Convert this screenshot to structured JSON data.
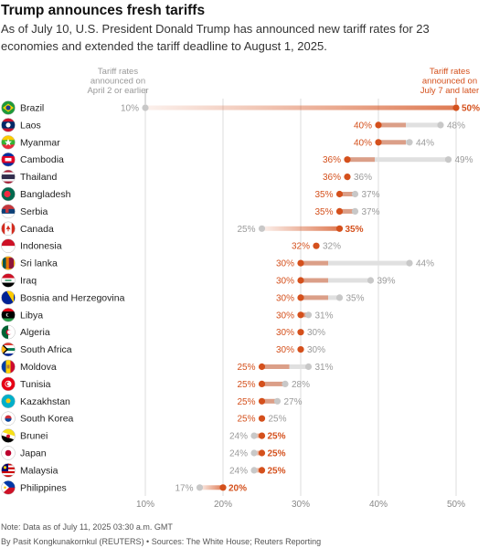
{
  "header": {
    "title": "Trump announces fresh tariffs",
    "subtitle": "As of July 10, U.S. President Donald Trump has announced new tariff rates for 23 economies and extended the tariff deadline to August 1, 2025."
  },
  "footer": {
    "note": "Note: Data as of July 11, 2025 03:30 a.m. GMT",
    "credit": "By Pasit Kongkunakornkul (REUTERS) • Sources: The White House; Reuters Reporting"
  },
  "colors": {
    "new_rate": "#d4501c",
    "old_rate": "#c8c8c8",
    "grid": "#dddddd",
    "old_label": "#9a9a9a"
  },
  "chart_data": {
    "type": "dumbbell",
    "legend": {
      "old": "Tariff rates announced on April 2 or earlier",
      "new": "Tariff rates announced on July 7 and later"
    },
    "x_ticks": [
      "10%",
      "20%",
      "30%",
      "40%",
      "50%"
    ],
    "xlim": [
      10,
      50
    ],
    "grid": true,
    "rows": [
      {
        "country": "Brazil",
        "flag": "brazil-flag",
        "old": 10,
        "new": 50
      },
      {
        "country": "Laos",
        "flag": "laos-flag",
        "old": 48,
        "new": 40
      },
      {
        "country": "Myanmar",
        "flag": "myanmar-flag",
        "old": 44,
        "new": 40
      },
      {
        "country": "Cambodia",
        "flag": "cambodia-flag",
        "old": 49,
        "new": 36
      },
      {
        "country": "Thailand",
        "flag": "thailand-flag",
        "old": 36,
        "new": 36
      },
      {
        "country": "Bangladesh",
        "flag": "bangladesh-flag",
        "old": 37,
        "new": 35
      },
      {
        "country": "Serbia",
        "flag": "serbia-flag",
        "old": 37,
        "new": 35
      },
      {
        "country": "Canada",
        "flag": "canada-flag",
        "old": 25,
        "new": 35
      },
      {
        "country": "Indonesia",
        "flag": "indonesia-flag",
        "old": 32,
        "new": 32
      },
      {
        "country": "Sri lanka",
        "flag": "sri-lanka-flag",
        "old": 44,
        "new": 30
      },
      {
        "country": "Iraq",
        "flag": "iraq-flag",
        "old": 39,
        "new": 30
      },
      {
        "country": "Bosnia and Herzegovina",
        "flag": "bosnia-flag",
        "old": 35,
        "new": 30
      },
      {
        "country": "Libya",
        "flag": "libya-flag",
        "old": 31,
        "new": 30
      },
      {
        "country": "Algeria",
        "flag": "algeria-flag",
        "old": 30,
        "new": 30
      },
      {
        "country": "South Africa",
        "flag": "south-africa-flag",
        "old": 30,
        "new": 30
      },
      {
        "country": "Moldova",
        "flag": "moldova-flag",
        "old": 31,
        "new": 25
      },
      {
        "country": "Tunisia",
        "flag": "tunisia-flag",
        "old": 28,
        "new": 25
      },
      {
        "country": "Kazakhstan",
        "flag": "kazakhstan-flag",
        "old": 27,
        "new": 25
      },
      {
        "country": "South Korea",
        "flag": "south-korea-flag",
        "old": 25,
        "new": 25
      },
      {
        "country": "Brunei",
        "flag": "brunei-flag",
        "old": 24,
        "new": 25
      },
      {
        "country": "Japan",
        "flag": "japan-flag",
        "old": 24,
        "new": 25
      },
      {
        "country": "Malaysia",
        "flag": "malaysia-flag",
        "old": 24,
        "new": 25
      },
      {
        "country": "Philippines",
        "flag": "philippines-flag",
        "old": 17,
        "new": 20
      }
    ]
  }
}
